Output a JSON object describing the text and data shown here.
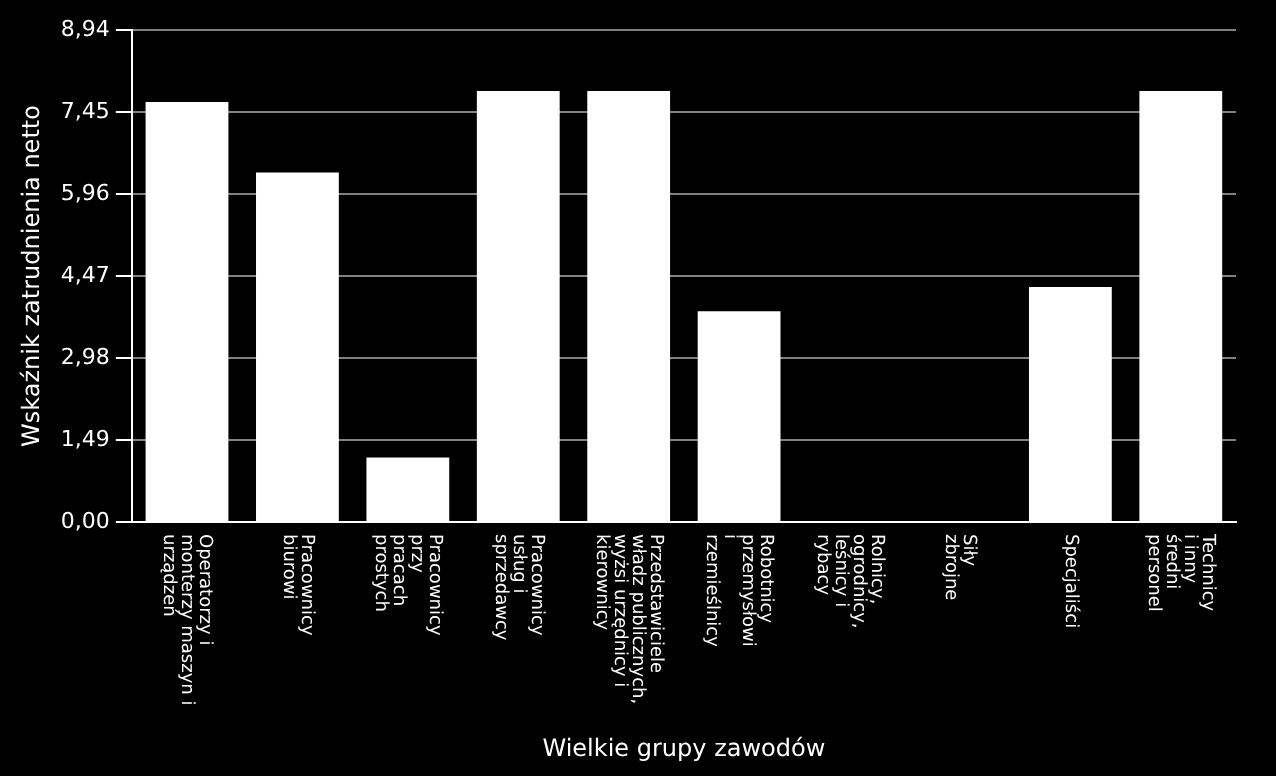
{
  "chart_data": {
    "type": "bar",
    "xlabel": "Wielkie grupy zawodów",
    "ylabel": "Wskaźnik zatrudnienia netto",
    "categories": [
      "Operatorzy i\nmonterzy maszyn i\nurządzeń",
      "Pracownicy\nbiurowi",
      "Pracownicy\nprzy\npracach\nprostych",
      "Pracownicy\nusług i\nsprzedawcy",
      "Przedstawiciele\nwładz publicznych,\nwyżsi urzędnicy i\nkierownicy",
      "Robotnicy\nprzemysłowi\ni\nrzemieślnicy",
      "Rolnicy,\nogrodnicy,\nleśnicy i\nrybacy",
      "Siły\nzbrojne",
      "Specjaliści",
      "Technicy\ni inny\nśredni\npersonel"
    ],
    "values": [
      7.63,
      6.35,
      1.17,
      7.83,
      7.83,
      3.83,
      null,
      null,
      4.27,
      7.83
    ],
    "color": "#ffffff",
    "ylim": [
      0,
      8.94
    ],
    "yticks": [
      {
        "value": 0,
        "label": "0,00"
      },
      {
        "value": 1.49,
        "label": "1,49"
      },
      {
        "value": 2.98,
        "label": "2,98"
      },
      {
        "value": 4.47,
        "label": "4,47"
      },
      {
        "value": 5.96,
        "label": "5,96"
      },
      {
        "value": 7.45,
        "label": "7,45"
      },
      {
        "value": 8.94,
        "label": "8,94"
      }
    ],
    "grid": "y",
    "legend": false
  }
}
